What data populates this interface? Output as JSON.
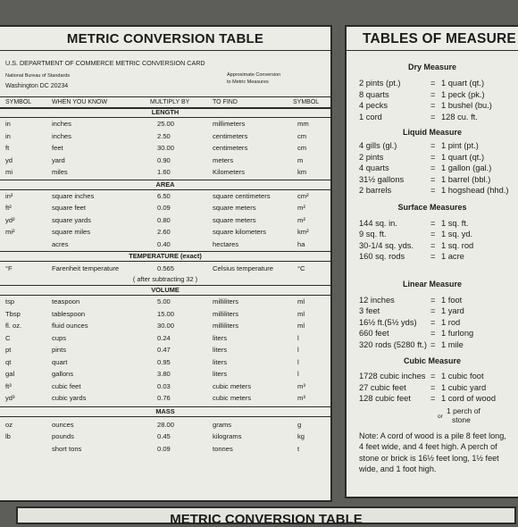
{
  "left": {
    "title": "METRIC CONVERSION TABLE",
    "agency": "U.S. DEPARTMENT OF COMMERCE METRIC CONVERSION CARD",
    "bureau": "National Bureau of Standards",
    "address": "Washington DC 20234",
    "approx_line1": "Approximate Conversion",
    "approx_line2": "to Metric Measures",
    "headers": {
      "symbol": "SYMBOL",
      "know": "WHEN YOU KNOW",
      "multiply": "MULTIPLY BY",
      "find": "TO FIND",
      "symbol2": "SYMBOL"
    },
    "length": {
      "label": "LENGTH",
      "rows": [
        {
          "sym": "in",
          "know": "inches",
          "mult": "25.00",
          "find": "millimeters",
          "unit": "mm"
        },
        {
          "sym": "in",
          "know": "inches",
          "mult": "2.50",
          "find": "centimeters",
          "unit": "cm"
        },
        {
          "sym": "ft",
          "know": "feet",
          "mult": "30.00",
          "find": "centimeters",
          "unit": "cm"
        },
        {
          "sym": "yd",
          "know": "yard",
          "mult": "0.90",
          "find": "meters",
          "unit": "m"
        },
        {
          "sym": "mi",
          "know": "miles",
          "mult": "1.60",
          "find": "Kilometers",
          "unit": "km"
        }
      ]
    },
    "area": {
      "label": "AREA",
      "rows": [
        {
          "sym": "in²",
          "know": "square inches",
          "mult": "6.50",
          "find": "square centimeters",
          "unit": "cm²"
        },
        {
          "sym": "ft²",
          "know": "square feet",
          "mult": "0.09",
          "find": "square meters",
          "unit": "m²"
        },
        {
          "sym": "yd²",
          "know": "square yards",
          "mult": "0.80",
          "find": "square meters",
          "unit": "m²"
        },
        {
          "sym": "mi²",
          "know": "square miles",
          "mult": "2.60",
          "find": "square kilometers",
          "unit": "km²"
        },
        {
          "sym": "",
          "know": "acres",
          "mult": "0.40",
          "find": "hectares",
          "unit": "ha"
        }
      ]
    },
    "temperature": {
      "label": "TEMPERATURE (exact)",
      "row": {
        "sym": "°F",
        "know": "Farenheit temperature",
        "mult": "0.565",
        "find": "Celsius temperature",
        "unit": "°C"
      },
      "note": "( after subtracting 32 )"
    },
    "volume": {
      "label": "VOLUME",
      "rows": [
        {
          "sym": "tsp",
          "know": "teaspoon",
          "mult": "5.00",
          "find": "milliliters",
          "unit": "ml"
        },
        {
          "sym": "Tbsp",
          "know": "tablespoon",
          "mult": "15.00",
          "find": "milliliters",
          "unit": "ml"
        },
        {
          "sym": "fl. oz.",
          "know": "fluid ounces",
          "mult": "30.00",
          "find": "milliliters",
          "unit": "ml"
        },
        {
          "sym": "C",
          "know": "cups",
          "mult": "0.24",
          "find": "liters",
          "unit": "l"
        },
        {
          "sym": "pt",
          "know": "pints",
          "mult": "0.47",
          "find": "liters",
          "unit": "l"
        },
        {
          "sym": "qt",
          "know": "quart",
          "mult": "0.95",
          "find": "liters",
          "unit": "l"
        },
        {
          "sym": "gal",
          "know": "gallons",
          "mult": "3.80",
          "find": "liters",
          "unit": "l"
        },
        {
          "sym": "ft³",
          "know": "cubic feet",
          "mult": "0.03",
          "find": "cubic meters",
          "unit": "m³"
        },
        {
          "sym": "yd³",
          "know": "cubic yards",
          "mult": "0.76",
          "find": "cubic meters",
          "unit": "m³"
        }
      ]
    },
    "mass": {
      "label": "MASS",
      "rows": [
        {
          "sym": "oz",
          "know": "ounces",
          "mult": "28.00",
          "find": "grams",
          "unit": "g"
        },
        {
          "sym": "lb",
          "know": "pounds",
          "mult": "0.45",
          "find": "kilograms",
          "unit": "kg"
        },
        {
          "sym": "",
          "know": "short tons",
          "mult": "0.09",
          "find": "tonnes",
          "unit": "t"
        }
      ]
    }
  },
  "right": {
    "title": "TABLES OF MEASURE",
    "dry": {
      "label": "Dry Measure",
      "rows": [
        {
          "l": "2 pints (pt.)",
          "r": "1 quart (qt.)"
        },
        {
          "l": "8 quarts",
          "r": "1 peck  (pk.)"
        },
        {
          "l": "4 pecks",
          "r": "1 bushel (bu.)"
        },
        {
          "l": "1 cord",
          "r": "128 cu. ft."
        }
      ]
    },
    "liquid": {
      "label": "Liquid Measure",
      "rows": [
        {
          "l": "4 gills (gl.)",
          "r": "1 pint (pt.)"
        },
        {
          "l": "2 pints",
          "r": "1 quart (qt.)"
        },
        {
          "l": "4 quarts",
          "r": "1 gallon (gal.)"
        },
        {
          "l": "31½ gallons",
          "r": "1 barrel (bbl.)"
        },
        {
          "l": "2 barrels",
          "r": "1 hogshead (hhd.)"
        }
      ]
    },
    "surface": {
      "label": "Surface Measures",
      "rows": [
        {
          "l": "144 sq. in.",
          "r": "1 sq. ft."
        },
        {
          "l": "9 sq. ft.",
          "r": "1 sq. yd."
        },
        {
          "l": "30-1/4 sq. yds.",
          "r": "1 sq. rod"
        },
        {
          "l": "160 sq. rods",
          "r": "1 acre"
        }
      ]
    },
    "linear": {
      "label": "Linear Measure",
      "rows": [
        {
          "l": "12 inches",
          "r": "1 foot"
        },
        {
          "l": "3 feet",
          "r": "1 yard"
        },
        {
          "l": "16½ ft.(5½ yds)",
          "r": "1 rod"
        },
        {
          "l": "660 feet",
          "r": "1 furlong"
        },
        {
          "l": "320 rods (5280 ft.)",
          "r": "1 mile"
        }
      ]
    },
    "cubic": {
      "label": "Cubic Measure",
      "rows": [
        {
          "l": "1728 cubic inches",
          "r": "1 cubic foot"
        },
        {
          "l": "27 cubic feet",
          "r": "1 cubic yard"
        },
        {
          "l": "128 cubic feet",
          "r": "1 cord of wood"
        }
      ]
    },
    "or": "or",
    "perch_line1": "1 perch of",
    "perch_line2": "stone",
    "eq": "=",
    "note": "Note: A cord of wood is a pile 8 feet long, 4 feet wide, and 4 feet high. A perch of stone or brick is 16½ feet long, 1½ feet wide, and 1 foot high."
  },
  "bottom_title": "METRIC CONVERSION TABLE"
}
